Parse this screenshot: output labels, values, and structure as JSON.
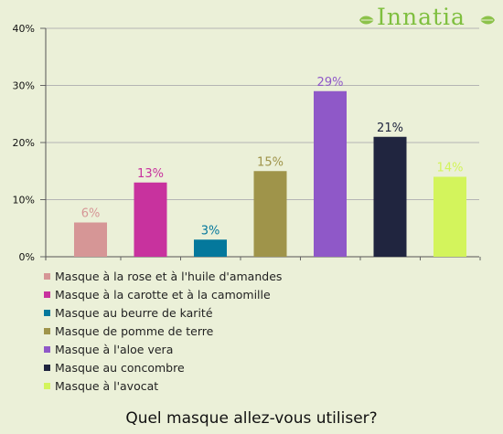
{
  "brand": {
    "logo_text": "Innatia"
  },
  "chart_data": {
    "type": "bar",
    "title": "Quel masque allez-vous utiliser?",
    "categories": [
      "Masque à la rose et à l'huile d'amandes",
      "Masque à la carotte et à la camomille",
      "Masque au beurre de karité",
      "Masque de pomme de terre",
      "Masque à l'aloe vera",
      "Masque au concombre",
      "Masque à l'avocat"
    ],
    "values": [
      6,
      13,
      3,
      15,
      29,
      21,
      14
    ],
    "value_labels": [
      "6%",
      "13%",
      "3%",
      "15%",
      "29%",
      "21%",
      "14%"
    ],
    "colors": [
      "#d69696",
      "#c8329e",
      "#04789c",
      "#9f944a",
      "#8f58c8",
      "#20253f",
      "#d3f45c"
    ],
    "ylim": [
      0,
      40
    ],
    "yticks": [
      0,
      10,
      20,
      30,
      40
    ],
    "ytick_labels": [
      "0%",
      "10%",
      "20%",
      "30%",
      "40%"
    ],
    "grid": true,
    "legend": "bottom"
  }
}
